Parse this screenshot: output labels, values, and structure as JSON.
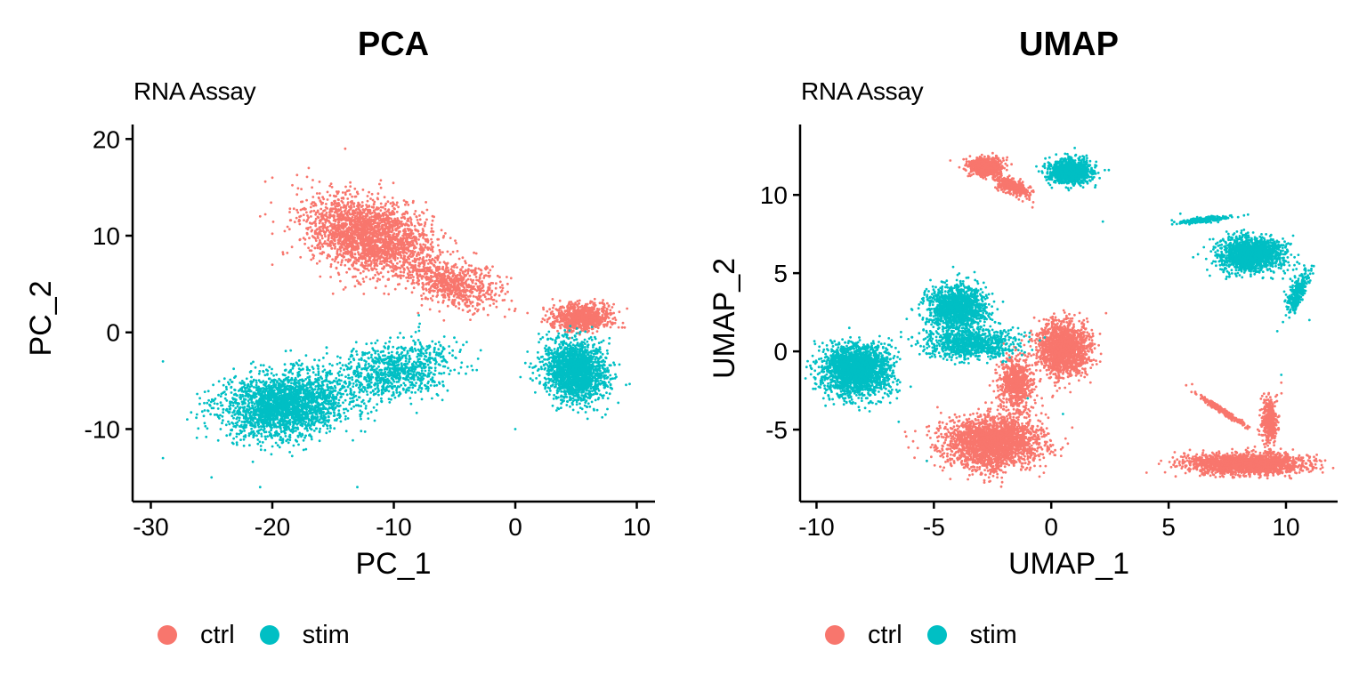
{
  "colors": {
    "ctrl": "#F8766D",
    "stim": "#00BFC4",
    "axis": "#000000",
    "background": "#FFFFFF"
  },
  "legend": {
    "items": [
      {
        "label": "ctrl",
        "color": "#F8766D"
      },
      {
        "label": "stim",
        "color": "#00BFC4"
      }
    ],
    "placement": "bottom"
  },
  "chart_data": [
    {
      "type": "scatter",
      "title": "PCA",
      "subtitle": "RNA Assay",
      "xlabel": "PC_1",
      "ylabel": "PC_2",
      "xlim": [
        -31.5,
        11.5
      ],
      "ylim": [
        -17.5,
        21.5
      ],
      "xticks": [
        -30,
        -20,
        -10,
        0,
        10
      ],
      "yticks": [
        -10,
        0,
        10,
        20
      ],
      "xtick_labels": [
        "-30",
        "-20",
        "-10",
        "0",
        "10"
      ],
      "ytick_labels": [
        "-10",
        "0",
        "10",
        "20"
      ],
      "grid": false,
      "legend_position": "bottom",
      "series": [
        {
          "name": "ctrl",
          "color": "#F8766D",
          "clusters": [
            {
              "center": [
                -12,
                10
              ],
              "spread": [
                5.0,
                3.2
              ],
              "rotation_deg": -28,
              "n": 2400
            },
            {
              "center": [
                -5,
                5
              ],
              "spread": [
                3.5,
                2.0
              ],
              "rotation_deg": -25,
              "n": 700
            },
            {
              "center": [
                5.5,
                1.5
              ],
              "spread": [
                2.2,
                1.2
              ],
              "rotation_deg": 0,
              "n": 900
            }
          ],
          "sample_points": [
            [
              -14,
              19
            ],
            [
              -17,
              17
            ],
            [
              -20,
              16
            ],
            [
              -21,
              12
            ],
            [
              -20,
              7
            ],
            [
              -15,
              4
            ],
            [
              -8,
              2
            ],
            [
              1,
              2
            ],
            [
              8,
              1
            ],
            [
              9,
              0.5
            ]
          ]
        },
        {
          "name": "stim",
          "color": "#00BFC4",
          "clusters": [
            {
              "center": [
                -19,
                -7.5
              ],
              "spread": [
                4.5,
                3.0
              ],
              "rotation_deg": 10,
              "n": 2400
            },
            {
              "center": [
                -10,
                -4
              ],
              "spread": [
                4.5,
                2.5
              ],
              "rotation_deg": 15,
              "n": 900
            },
            {
              "center": [
                5,
                -4
              ],
              "spread": [
                2.3,
                3.0
              ],
              "rotation_deg": 20,
              "n": 1800
            }
          ],
          "sample_points": [
            [
              -29,
              -3
            ],
            [
              -29,
              -13
            ],
            [
              -27,
              -9
            ],
            [
              -25,
              -15
            ],
            [
              -21,
              -16
            ],
            [
              -13,
              -16
            ],
            [
              -4,
              -1
            ],
            [
              0,
              -10
            ],
            [
              -6,
              -7
            ],
            [
              1,
              -2
            ]
          ]
        }
      ]
    },
    {
      "type": "scatter",
      "title": "UMAP",
      "subtitle": "RNA Assay",
      "xlabel": "UMAP_1",
      "ylabel": "UMAP_2",
      "xlim": [
        -10.7,
        12.2
      ],
      "ylim": [
        -9.6,
        14.5
      ],
      "xticks": [
        -10,
        -5,
        0,
        5,
        10
      ],
      "yticks": [
        -5,
        0,
        5,
        10
      ],
      "xtick_labels": [
        "-10",
        "-5",
        "0",
        "5",
        "10"
      ],
      "ytick_labels": [
        "-5",
        "0",
        "5",
        "10"
      ],
      "grid": false,
      "legend_position": "bottom",
      "series": [
        {
          "name": "ctrl",
          "color": "#F8766D",
          "clusters": [
            {
              "center": [
                -2.8,
                11.8
              ],
              "spread": [
                0.6,
                0.5
              ],
              "rotation_deg": 0,
              "n": 800
            },
            {
              "center": [
                -1.6,
                10.5
              ],
              "spread": [
                0.8,
                0.35
              ],
              "rotation_deg": -40,
              "n": 400
            },
            {
              "center": [
                -2.5,
                -5.8
              ],
              "spread": [
                1.8,
                1.5
              ],
              "rotation_deg": 0,
              "n": 2500
            },
            {
              "center": [
                0.5,
                0.2
              ],
              "spread": [
                1.0,
                1.6
              ],
              "rotation_deg": 0,
              "n": 1600
            },
            {
              "center": [
                -1.5,
                -2.0
              ],
              "spread": [
                0.6,
                1.6
              ],
              "rotation_deg": 0,
              "n": 700
            },
            {
              "center": [
                8.3,
                -7.2
              ],
              "spread": [
                2.2,
                0.6
              ],
              "rotation_deg": 0,
              "n": 2000
            },
            {
              "center": [
                9.3,
                -4.5
              ],
              "spread": [
                0.3,
                1.3
              ],
              "rotation_deg": 0,
              "n": 400
            },
            {
              "center": [
                7.3,
                -3.8
              ],
              "spread": [
                1.2,
                0.12
              ],
              "rotation_deg": -45,
              "n": 300
            }
          ],
          "sample_points": [
            [
              -4.3,
              12.2
            ],
            [
              -0.8,
              9.2
            ],
            [
              -5.3,
              -7.0
            ],
            [
              -0.5,
              -8.0
            ],
            [
              1.6,
              0.0
            ],
            [
              -1.0,
              -4.0
            ],
            [
              5.9,
              -7.6
            ],
            [
              11.0,
              -6.8
            ],
            [
              6.0,
              -2.1
            ],
            [
              9.8,
              -2.0
            ]
          ]
        },
        {
          "name": "stim",
          "color": "#00BFC4",
          "clusters": [
            {
              "center": [
                0.8,
                11.5
              ],
              "spread": [
                0.8,
                0.7
              ],
              "rotation_deg": 0,
              "n": 1100
            },
            {
              "center": [
                -8.3,
                -1.2
              ],
              "spread": [
                1.3,
                1.5
              ],
              "rotation_deg": 0,
              "n": 2200
            },
            {
              "center": [
                -4.0,
                2.8
              ],
              "spread": [
                1.1,
                1.2
              ],
              "rotation_deg": 0,
              "n": 1400
            },
            {
              "center": [
                -3.5,
                0.5
              ],
              "spread": [
                1.8,
                0.9
              ],
              "rotation_deg": 0,
              "n": 900
            },
            {
              "center": [
                8.5,
                6.2
              ],
              "spread": [
                1.2,
                1.0
              ],
              "rotation_deg": 0,
              "n": 1600
            },
            {
              "center": [
                10.5,
                3.8
              ],
              "spread": [
                0.3,
                1.2
              ],
              "rotation_deg": -15,
              "n": 300
            },
            {
              "center": [
                6.5,
                8.4
              ],
              "spread": [
                1.0,
                0.15
              ],
              "rotation_deg": 10,
              "n": 250
            }
          ],
          "sample_points": [
            [
              -9.9,
              -1.0
            ],
            [
              -6.5,
              -4.5
            ],
            [
              2.2,
              8.3
            ],
            [
              5.5,
              8.8
            ],
            [
              11.0,
              2.0
            ],
            [
              1.0,
              13.0
            ],
            [
              -5.3,
              -7.0
            ],
            [
              -1.0,
              -3.0
            ],
            [
              0.5,
              -4.0
            ],
            [
              9.8,
              -1.5
            ]
          ]
        }
      ]
    }
  ]
}
